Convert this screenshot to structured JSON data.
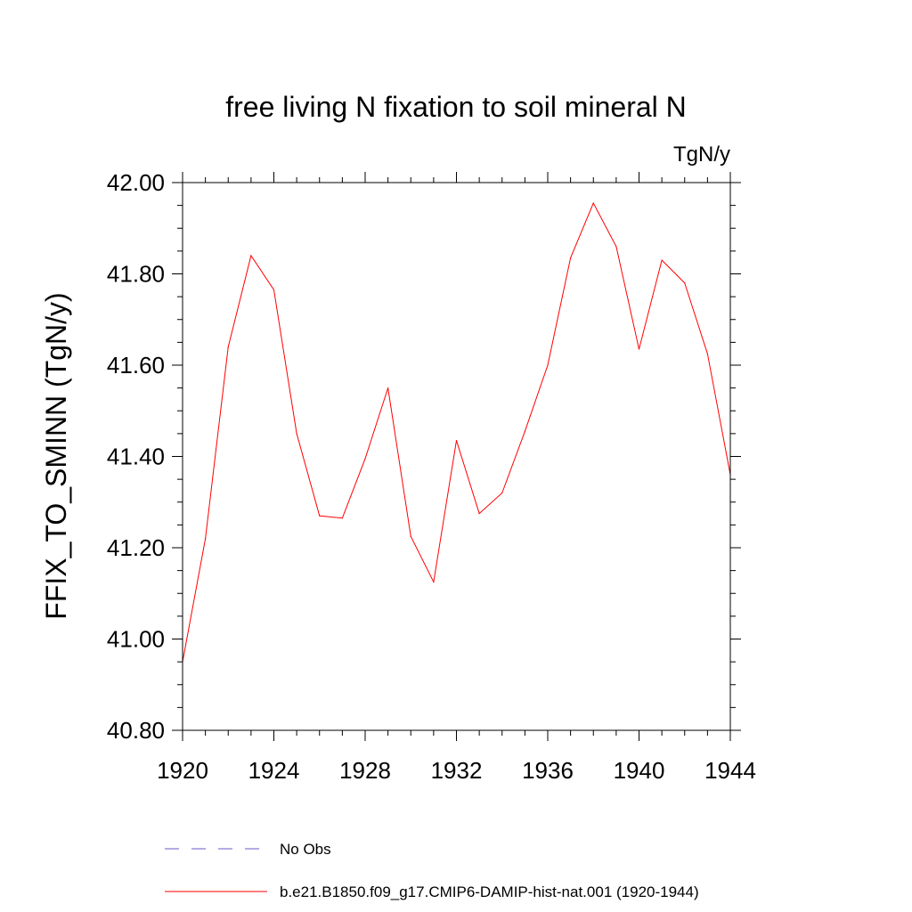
{
  "chart_data": {
    "type": "line",
    "title": "free living N fixation to soil mineral N",
    "units": "TgN/y",
    "xlabel": "",
    "ylabel": "FFIX_TO_SMINN  (TgN/y)",
    "xlim": [
      1920,
      1944
    ],
    "ylim": [
      40.8,
      42.0
    ],
    "xticks": [
      1920,
      1924,
      1928,
      1932,
      1936,
      1940,
      1944
    ],
    "yticks": [
      "40.80",
      "41.00",
      "41.20",
      "41.40",
      "41.60",
      "41.80",
      "42.00"
    ],
    "grid": false,
    "legend_position": "bottom",
    "series": [
      {
        "name": "No Obs",
        "color": "#6a5acd",
        "style": "dashed",
        "x": [],
        "y": []
      },
      {
        "name": "b.e21.B1850.f09_g17.CMIP6-DAMIP-hist-nat.001 (1920-1944)",
        "color": "#ff0000",
        "style": "solid",
        "x": [
          1920,
          1921,
          1922,
          1923,
          1924,
          1925,
          1926,
          1927,
          1928,
          1929,
          1930,
          1931,
          1932,
          1933,
          1934,
          1935,
          1936,
          1937,
          1938,
          1939,
          1940,
          1941,
          1942,
          1943,
          1944
        ],
        "y": [
          40.95,
          41.22,
          41.64,
          41.84,
          41.765,
          41.45,
          41.27,
          41.265,
          41.395,
          41.55,
          41.225,
          41.125,
          41.435,
          41.275,
          41.32,
          41.455,
          41.6,
          41.835,
          41.955,
          41.86,
          41.635,
          41.83,
          41.78,
          41.625,
          41.36
        ]
      }
    ]
  }
}
